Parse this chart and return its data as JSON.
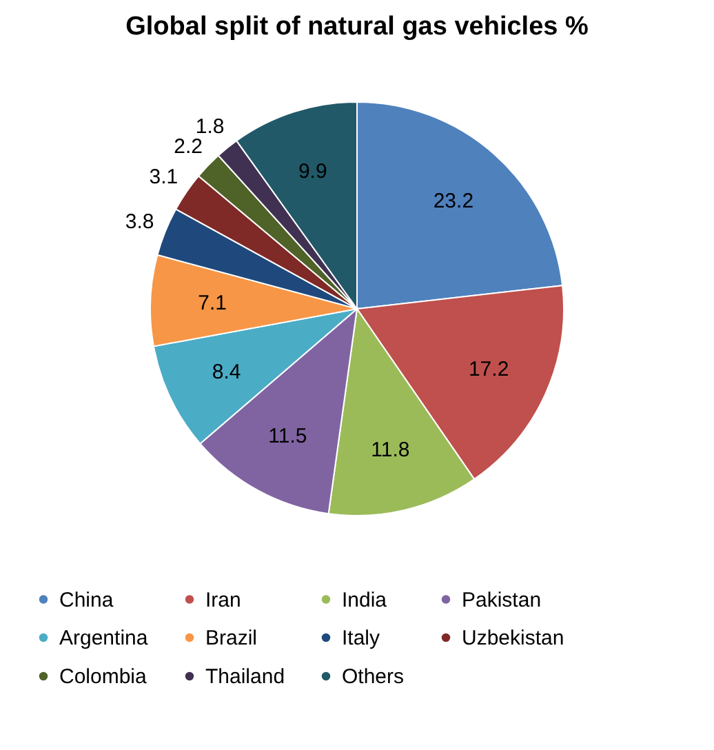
{
  "chart_data": {
    "type": "pie",
    "title": "Global split of natural gas vehicles %",
    "categories": [
      "China",
      "Iran",
      "India",
      "Pakistan",
      "Argentina",
      "Brazil",
      "Italy",
      "Uzbekistan",
      "Colombia",
      "Thailand",
      "Others"
    ],
    "values": [
      23.2,
      17.2,
      11.8,
      11.5,
      8.4,
      7.1,
      3.8,
      3.1,
      2.2,
      1.8,
      9.9
    ],
    "colors": [
      "#4f81bd",
      "#c0504d",
      "#9bbb59",
      "#8064a2",
      "#4bacc6",
      "#f79646",
      "#1f497d",
      "#7f2a27",
      "#4f6228",
      "#403152",
      "#215968"
    ],
    "data_labels": true,
    "legend": "bottom"
  }
}
